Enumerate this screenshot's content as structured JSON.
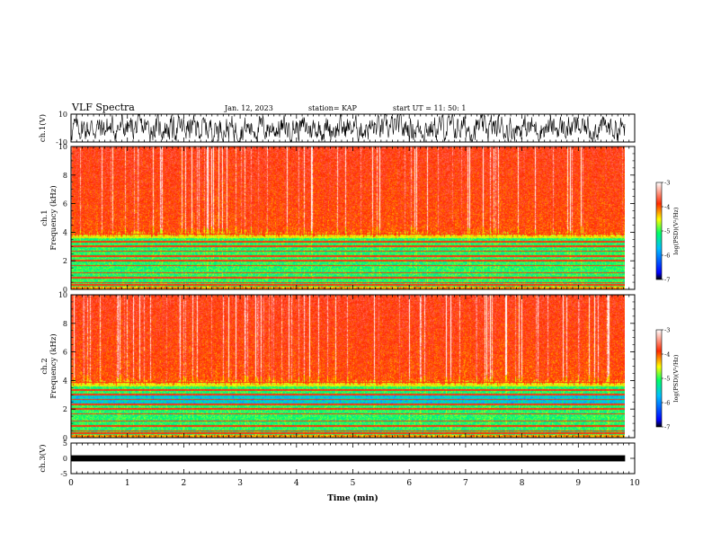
{
  "header": {
    "title": "VLF Spectra",
    "date": "Jan. 12, 2023",
    "station": "station= KAP",
    "start_ut": "start UT =   11: 50: 1"
  },
  "chart_data": [
    {
      "type": "line",
      "ylabel": "ch.1(V)",
      "ylim": [
        -10,
        10
      ],
      "yticks": [
        {
          "v": 10,
          "label": "10"
        },
        {
          "v": -10,
          "label": "-10"
        }
      ],
      "xlim": [
        0,
        10
      ],
      "color": "#000000"
    },
    {
      "type": "heatmap",
      "ylabel": "ch.1\nFrequency (kHz)",
      "ylim": [
        0,
        10
      ],
      "yticks": [
        {
          "v": 0,
          "label": "0"
        },
        {
          "v": 2,
          "label": "2"
        },
        {
          "v": 4,
          "label": "4"
        },
        {
          "v": 6,
          "label": "6"
        },
        {
          "v": 8,
          "label": "8"
        },
        {
          "v": 10,
          "label": "10"
        }
      ],
      "xlim": [
        0,
        10
      ],
      "data_end_min": 9.83,
      "colorbar": {
        "label": "log(PSD)(V²/Hz)",
        "range": [
          -7,
          -3
        ],
        "ticks": [
          {
            "v": -3,
            "label": "-3"
          },
          {
            "v": -4,
            "label": "-4"
          },
          {
            "v": -5,
            "label": "-5"
          },
          {
            "v": -6,
            "label": "-6"
          },
          {
            "v": -7,
            "label": "-7"
          }
        ]
      }
    },
    {
      "type": "heatmap",
      "ylabel": "ch.2\nFrequency (kHz)",
      "ylim": [
        0,
        10
      ],
      "yticks": [
        {
          "v": 0,
          "label": "0"
        },
        {
          "v": 2,
          "label": "2"
        },
        {
          "v": 4,
          "label": "4"
        },
        {
          "v": 6,
          "label": "6"
        },
        {
          "v": 8,
          "label": "8"
        },
        {
          "v": 10,
          "label": "10"
        }
      ],
      "xlim": [
        0,
        10
      ],
      "data_end_min": 9.83,
      "colorbar": {
        "label": "log(PSD)(V²/Hz)",
        "range": [
          -7,
          -3
        ],
        "ticks": [
          {
            "v": -3,
            "label": "-3"
          },
          {
            "v": -4,
            "label": "-4"
          },
          {
            "v": -5,
            "label": "-5"
          },
          {
            "v": -6,
            "label": "-6"
          },
          {
            "v": -7,
            "label": "-7"
          }
        ]
      }
    },
    {
      "type": "line",
      "ylabel": "ch.3(V)",
      "ylim": [
        -5,
        5
      ],
      "yticks": [
        {
          "v": 5,
          "label": "5"
        },
        {
          "v": 0,
          "label": "0"
        },
        {
          "v": -5,
          "label": "-5"
        }
      ],
      "xlim": [
        0,
        10
      ],
      "color": "#000000"
    }
  ],
  "xaxis": {
    "label": "Time (min)",
    "ticks": [
      {
        "v": 0,
        "label": "0"
      },
      {
        "v": 1,
        "label": "1"
      },
      {
        "v": 2,
        "label": "2"
      },
      {
        "v": 3,
        "label": "3"
      },
      {
        "v": 4,
        "label": "4"
      },
      {
        "v": 5,
        "label": "5"
      },
      {
        "v": 6,
        "label": "6"
      },
      {
        "v": 7,
        "label": "7"
      },
      {
        "v": 8,
        "label": "8"
      },
      {
        "v": 9,
        "label": "9"
      },
      {
        "v": 10,
        "label": "10"
      }
    ]
  }
}
